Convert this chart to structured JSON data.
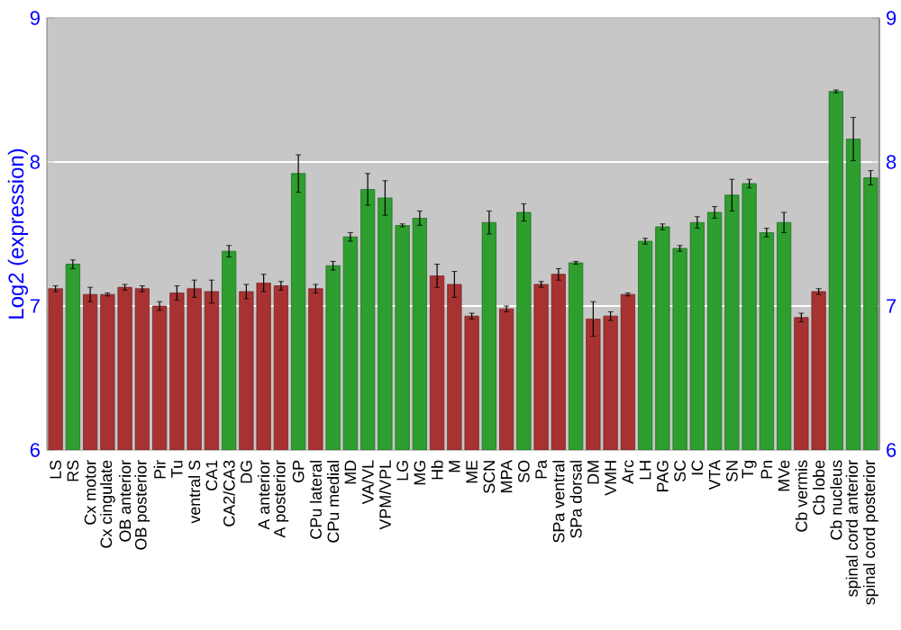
{
  "chart_data": {
    "type": "bar",
    "ylabel": "Log2 (expression)",
    "categories": [
      "LS",
      "RS",
      "Cx motor",
      "Cx cingulate",
      "OB anterior",
      "OB posterior",
      "Pir",
      "Tu",
      "ventral S",
      "CA1",
      "CA2/CA3",
      "DG",
      "A anterior",
      "A posterior",
      "GP",
      "CPu lateral",
      "CPu medial",
      "MD",
      "VA/VL",
      "VPM/VPL",
      "LG",
      "MG",
      "Hb",
      "M",
      "ME",
      "SCN",
      "MPA",
      "SO",
      "Pa",
      "SPa ventral",
      "SPa dorsal",
      "DM",
      "VMH",
      "Arc",
      "LH",
      "PAG",
      "SC",
      "IC",
      "VTA",
      "SN",
      "Tg",
      "Pn",
      "MVe",
      "Cb vermis",
      "Cb lobe",
      "Cb nucleus",
      "spinal cord anterior",
      "spinal cord posterior"
    ],
    "values": [
      7.12,
      7.29,
      7.08,
      7.08,
      7.13,
      7.12,
      7.0,
      7.09,
      7.12,
      7.1,
      7.38,
      7.1,
      7.16,
      7.14,
      7.92,
      7.12,
      7.28,
      7.48,
      7.81,
      7.75,
      7.56,
      7.61,
      7.21,
      7.15,
      6.93,
      7.58,
      6.98,
      7.65,
      7.15,
      7.22,
      7.3,
      6.91,
      6.93,
      7.08,
      7.45,
      7.55,
      7.4,
      7.58,
      7.65,
      7.77,
      7.85,
      7.51,
      7.58,
      6.92,
      7.1,
      8.49,
      8.16,
      7.89
    ],
    "errors": [
      0.02,
      0.03,
      0.05,
      0.01,
      0.02,
      0.02,
      0.03,
      0.05,
      0.06,
      0.08,
      0.04,
      0.05,
      0.06,
      0.03,
      0.13,
      0.03,
      0.03,
      0.03,
      0.11,
      0.12,
      0.01,
      0.05,
      0.08,
      0.09,
      0.02,
      0.08,
      0.02,
      0.06,
      0.02,
      0.04,
      0.01,
      0.12,
      0.03,
      0.01,
      0.02,
      0.02,
      0.02,
      0.04,
      0.04,
      0.11,
      0.03,
      0.03,
      0.07,
      0.03,
      0.02,
      0.01,
      0.15,
      0.05
    ],
    "colors": [
      "#a83232",
      "#2e9e2e",
      "#a83232",
      "#a83232",
      "#a83232",
      "#a83232",
      "#a83232",
      "#a83232",
      "#a83232",
      "#a83232",
      "#2e9e2e",
      "#a83232",
      "#a83232",
      "#a83232",
      "#2e9e2e",
      "#a83232",
      "#2e9e2e",
      "#2e9e2e",
      "#2e9e2e",
      "#2e9e2e",
      "#2e9e2e",
      "#2e9e2e",
      "#a83232",
      "#a83232",
      "#a83232",
      "#2e9e2e",
      "#a83232",
      "#2e9e2e",
      "#a83232",
      "#a83232",
      "#2e9e2e",
      "#a83232",
      "#a83232",
      "#a83232",
      "#2e9e2e",
      "#2e9e2e",
      "#2e9e2e",
      "#2e9e2e",
      "#2e9e2e",
      "#2e9e2e",
      "#2e9e2e",
      "#2e9e2e",
      "#2e9e2e",
      "#a83232",
      "#a83232",
      "#2e9e2e",
      "#2e9e2e",
      "#2e9e2e"
    ],
    "ylim": [
      6,
      9
    ],
    "yticks": [
      6,
      7,
      8,
      9
    ],
    "y2lim": [
      6,
      9
    ],
    "y2ticks": [
      6,
      7,
      8,
      9
    ],
    "grid": "y"
  }
}
